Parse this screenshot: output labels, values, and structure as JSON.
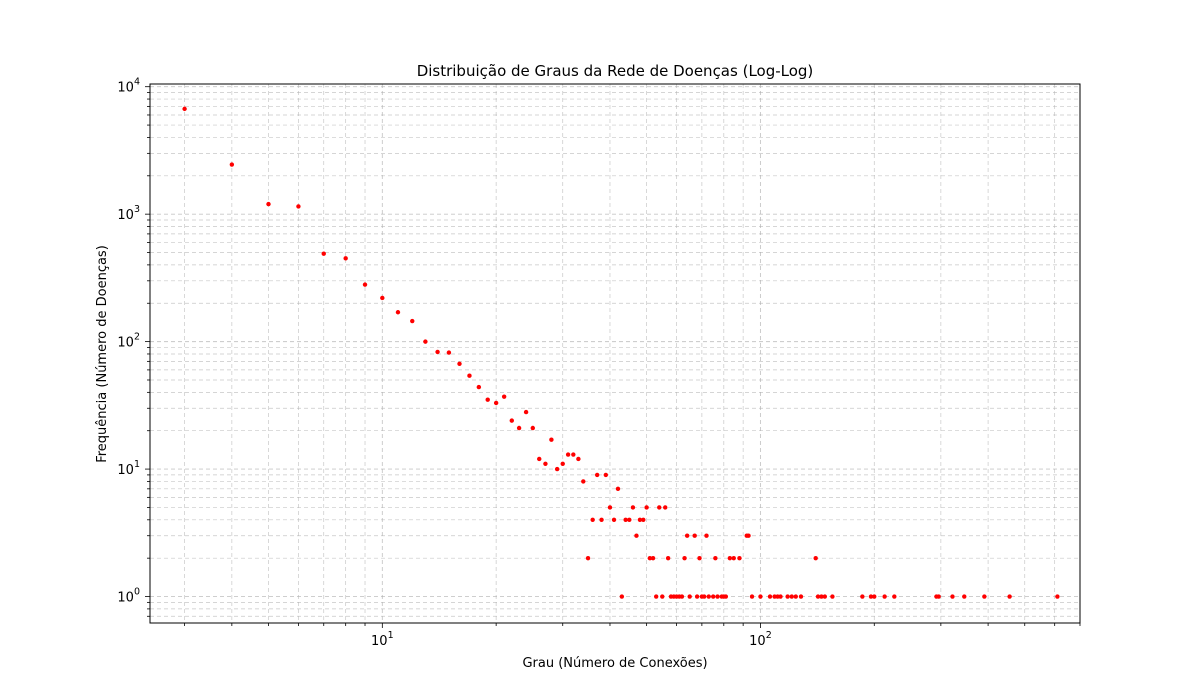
{
  "chart_data": {
    "type": "scatter",
    "title": "Distribuição de Graus da Rede de Doenças (Log-Log)",
    "xlabel": "Grau (Número de Conexões)",
    "ylabel": "Frequência (Número de Doenças)",
    "xscale": "log",
    "yscale": "log",
    "xlim": [
      2.43,
      700
    ],
    "ylim": [
      0.62,
      10500
    ],
    "grid": true,
    "marker_color": "#ff0000",
    "xticks": [
      {
        "value": 10,
        "base": "10",
        "exp": "1"
      },
      {
        "value": 100,
        "base": "10",
        "exp": "2"
      }
    ],
    "yticks": [
      {
        "value": 1,
        "base": "10",
        "exp": "0"
      },
      {
        "value": 10,
        "base": "10",
        "exp": "1"
      },
      {
        "value": 100,
        "base": "10",
        "exp": "2"
      },
      {
        "value": 1000,
        "base": "10",
        "exp": "3"
      },
      {
        "value": 10000,
        "base": "10",
        "exp": "4"
      }
    ],
    "points": [
      [
        3,
        6700
      ],
      [
        4,
        2450
      ],
      [
        5,
        1200
      ],
      [
        6,
        1150
      ],
      [
        7,
        490
      ],
      [
        8,
        450
      ],
      [
        9,
        280
      ],
      [
        10,
        220
      ],
      [
        11,
        170
      ],
      [
        12,
        145
      ],
      [
        13,
        100
      ],
      [
        14,
        83
      ],
      [
        15,
        82
      ],
      [
        16,
        67
      ],
      [
        17,
        54
      ],
      [
        18,
        44
      ],
      [
        19,
        35
      ],
      [
        20,
        33
      ],
      [
        21,
        37
      ],
      [
        22,
        24
      ],
      [
        23,
        21
      ],
      [
        24,
        28
      ],
      [
        25,
        21
      ],
      [
        26,
        12
      ],
      [
        27,
        11
      ],
      [
        28,
        17
      ],
      [
        29,
        10
      ],
      [
        30,
        11
      ],
      [
        31,
        13
      ],
      [
        32,
        13
      ],
      [
        33,
        12
      ],
      [
        34,
        8
      ],
      [
        35,
        2
      ],
      [
        36,
        4
      ],
      [
        37,
        9
      ],
      [
        38,
        4
      ],
      [
        39,
        9
      ],
      [
        40,
        5
      ],
      [
        41,
        4
      ],
      [
        42,
        7
      ],
      [
        43,
        1
      ],
      [
        44,
        4
      ],
      [
        45,
        4
      ],
      [
        46,
        5
      ],
      [
        47,
        3
      ],
      [
        48,
        4
      ],
      [
        49,
        4
      ],
      [
        50,
        5
      ],
      [
        51,
        2
      ],
      [
        52,
        2
      ],
      [
        53,
        1
      ],
      [
        54,
        5
      ],
      [
        55,
        1
      ],
      [
        56,
        5
      ],
      [
        57,
        2
      ],
      [
        58,
        1
      ],
      [
        59,
        1
      ],
      [
        60,
        1
      ],
      [
        61,
        1
      ],
      [
        62,
        1
      ],
      [
        63,
        2
      ],
      [
        64,
        3
      ],
      [
        65,
        1
      ],
      [
        67,
        3
      ],
      [
        68,
        1
      ],
      [
        69,
        2
      ],
      [
        70,
        1
      ],
      [
        71,
        1
      ],
      [
        72,
        3
      ],
      [
        73,
        1
      ],
      [
        75,
        1
      ],
      [
        76,
        2
      ],
      [
        77,
        1
      ],
      [
        79,
        1
      ],
      [
        80,
        1
      ],
      [
        81,
        1
      ],
      [
        83,
        2
      ],
      [
        85,
        2
      ],
      [
        88,
        2
      ],
      [
        92,
        3
      ],
      [
        93,
        3
      ],
      [
        95,
        1
      ],
      [
        100,
        1
      ],
      [
        106,
        1
      ],
      [
        109,
        1
      ],
      [
        111,
        1
      ],
      [
        113,
        1
      ],
      [
        118,
        1
      ],
      [
        121,
        1
      ],
      [
        124,
        1
      ],
      [
        128,
        1
      ],
      [
        140,
        2
      ],
      [
        142,
        1
      ],
      [
        145,
        1
      ],
      [
        148,
        1
      ],
      [
        155,
        1
      ],
      [
        186,
        1
      ],
      [
        196,
        1
      ],
      [
        200,
        1
      ],
      [
        213,
        1
      ],
      [
        226,
        1
      ],
      [
        292,
        1
      ],
      [
        296,
        1
      ],
      [
        322,
        1
      ],
      [
        346,
        1
      ],
      [
        391,
        1
      ],
      [
        456,
        1
      ],
      [
        610,
        1
      ]
    ]
  }
}
